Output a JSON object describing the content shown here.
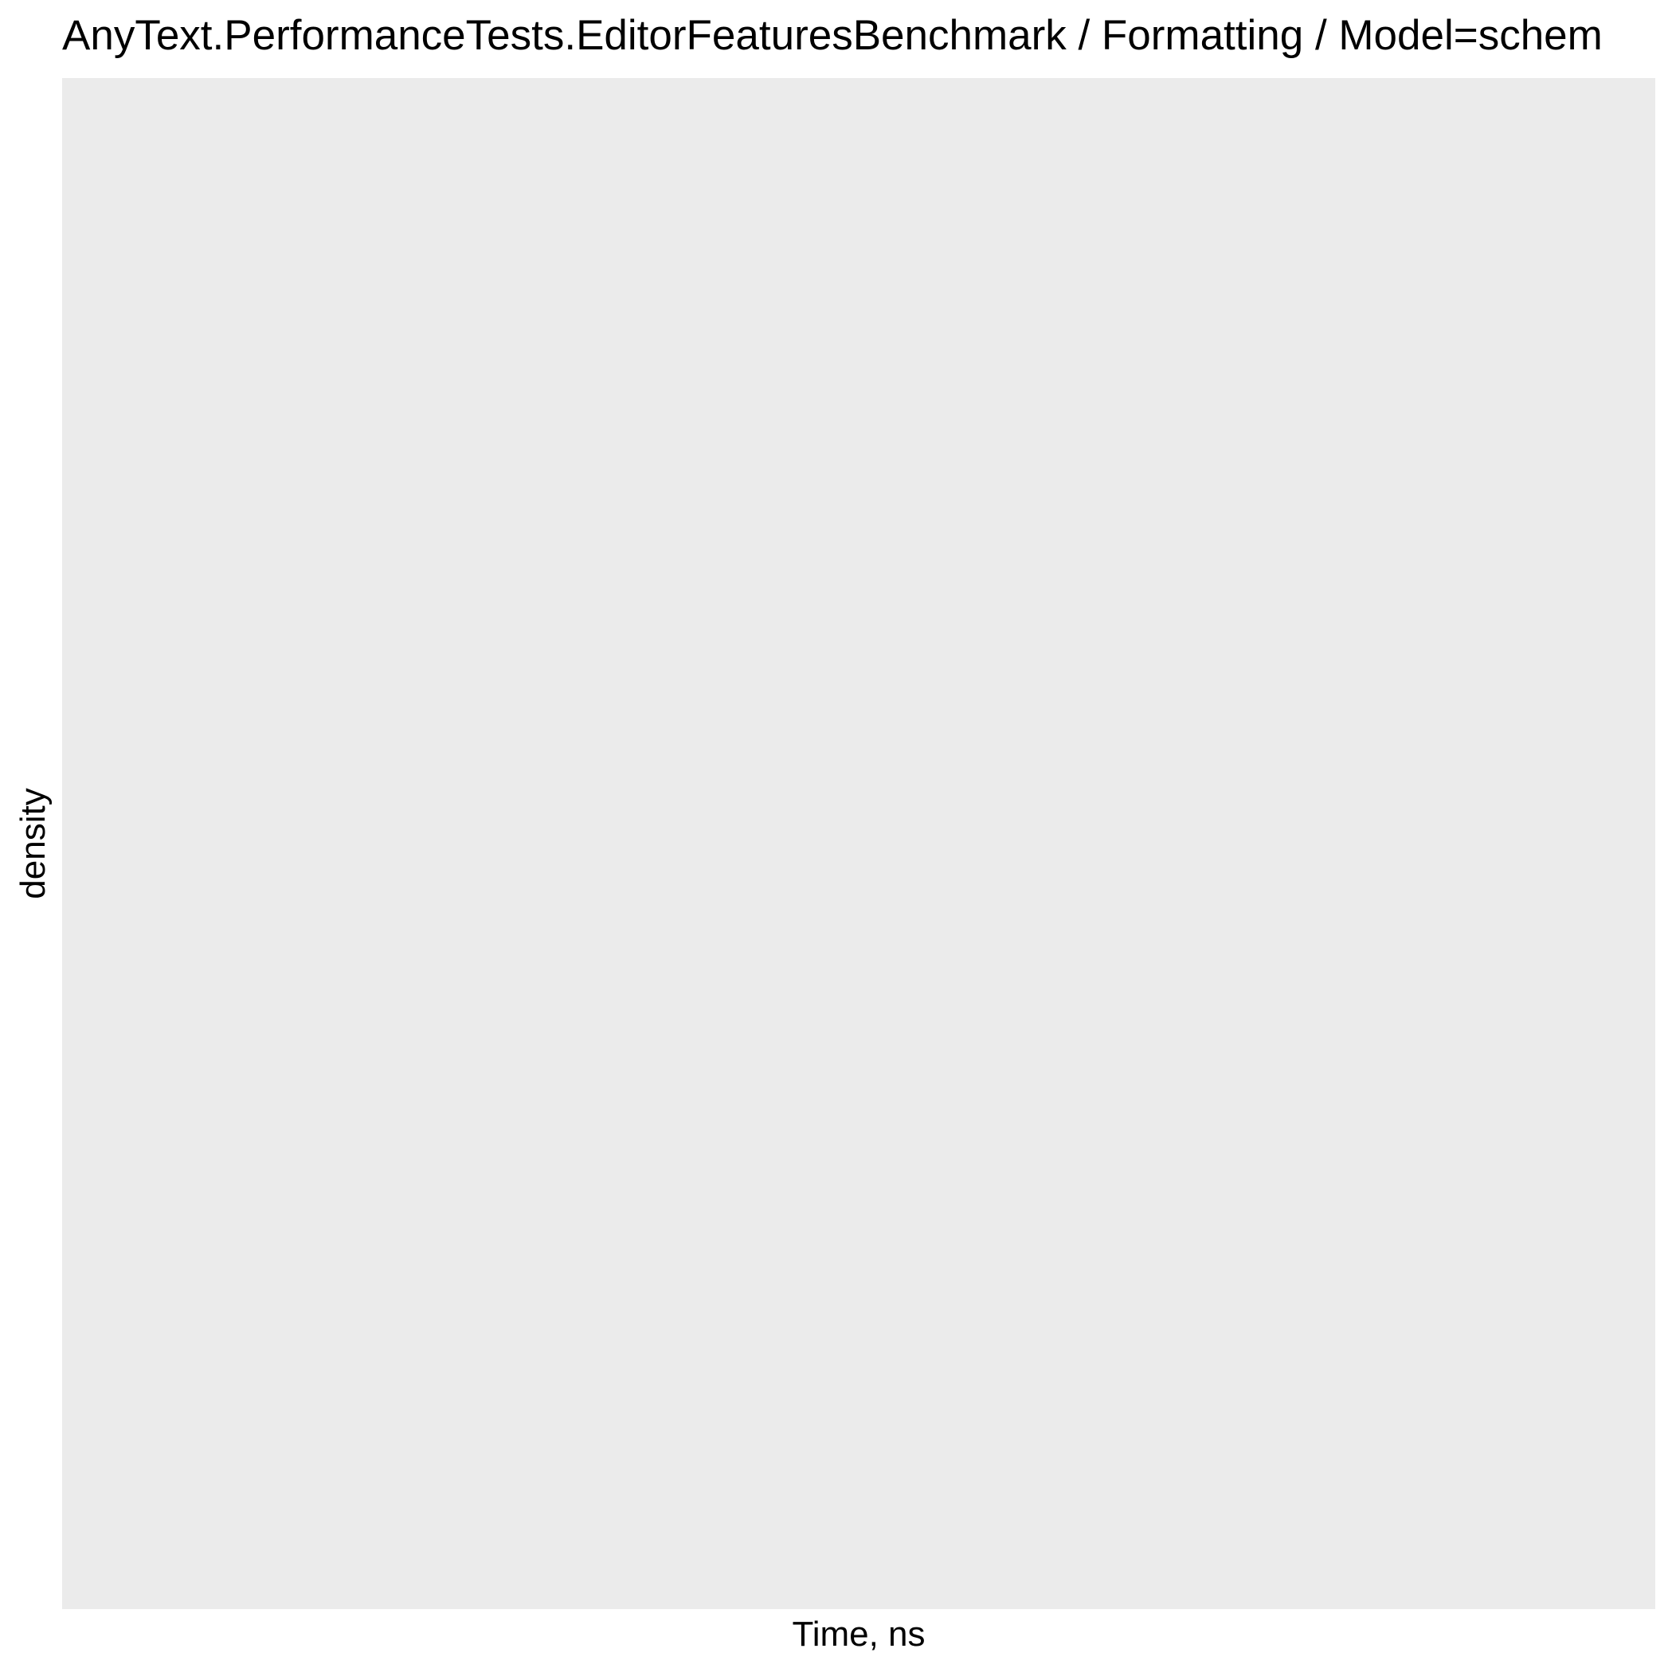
{
  "chart_data": {
    "type": "area",
    "title": "AnyText.PerformanceTests.EditorFeaturesBenchmark / Formatting / Model=schem",
    "xlabel": "Time, ns",
    "ylabel": "density",
    "series": [],
    "grid": false,
    "legend": "none",
    "panel_background": "#EBEBEB"
  }
}
